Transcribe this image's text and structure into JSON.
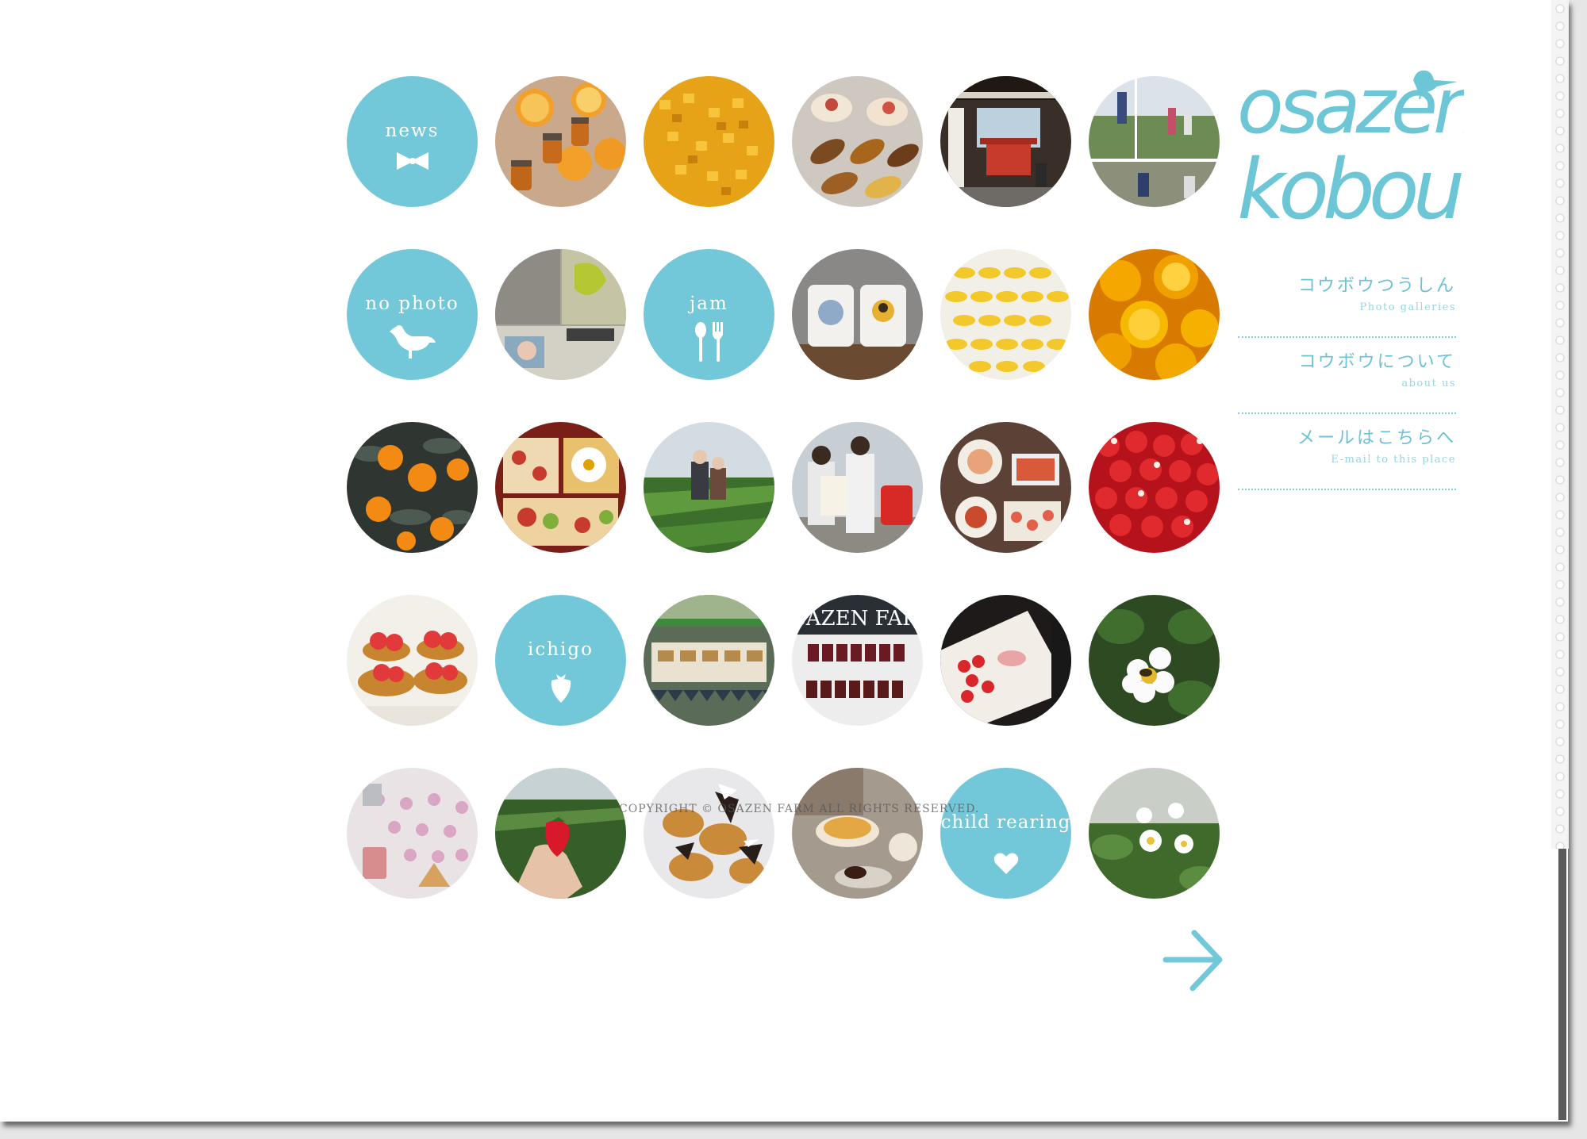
{
  "brand": {
    "logo_line1": "osazen",
    "logo_line2": "kobou",
    "accent_color": "#72c8d8"
  },
  "categories": {
    "news": {
      "label": "news",
      "icon": "bowtie-icon"
    },
    "no_photo": {
      "label": "no photo",
      "icon": "bird-icon"
    },
    "jam": {
      "label": "jam",
      "icon": "spoon-fork-icon"
    },
    "ichigo": {
      "label": "ichigo",
      "icon": "strawberry-icon"
    },
    "child_rearing": {
      "label": "child rearing",
      "icon": "heart-icon"
    }
  },
  "photos": [
    "oranges-and-jam-jars",
    "diced-orange-peel",
    "decorated-cookies",
    "shrine-gate",
    "family-in-orchard",
    "building-collage",
    "jam-mugs",
    "sliced-citrus-rows",
    "halved-oranges",
    "mandarin-tree",
    "bento-box-fruits",
    "strawberry-greenhouse",
    "children-with-strawberry-sign",
    "feast-table",
    "strawberries-pile",
    "strawberry-tarts",
    "market-stall",
    "osazen-farm-shelf",
    "strawberries-on-plate",
    "strawberry-flower-bee",
    "pink-macarons",
    "hand-holding-strawberry",
    "chocolate-chips",
    "pudding-dessert",
    "strawberry-blossoms"
  ],
  "menu": [
    {
      "jp": "コウボウつうしん",
      "en": "Photo galleries"
    },
    {
      "jp": "コウボウについて",
      "en": "about us"
    },
    {
      "jp": "メールはこちらへ",
      "en": "E-mail to this place"
    }
  ],
  "footer": {
    "copyright": "COPYRIGHT © OSAZEN FARM ALL RIGHTS RESERVED."
  },
  "next_icon": "arrow-right-icon"
}
